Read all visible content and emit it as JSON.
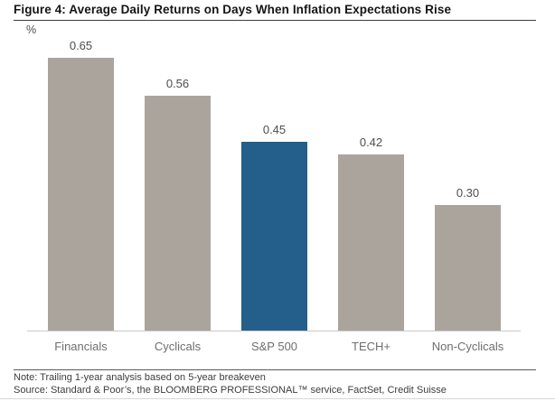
{
  "figure": {
    "title": "Figure 4: Average Daily Returns on Days When Inflation Expectations Rise",
    "note": "Note: Trailing 1-year analysis based on 5-year breakeven",
    "source": "Source: Standard & Poor’s, the BLOOMBERG PROFESSIONAL™ service, FactSet, Credit Suisse"
  },
  "chart_data": {
    "type": "bar",
    "title": "Figure 4: Average Daily Returns on Days When Inflation Expectations Rise",
    "categories": [
      "Financials",
      "Cyclicals",
      "S&P 500",
      "TECH+",
      "Non-Cyclicals"
    ],
    "values": [
      0.65,
      0.56,
      0.45,
      0.42,
      0.3
    ],
    "data_labels": [
      "0.65",
      "0.56",
      "0.45",
      "0.42",
      "0.30"
    ],
    "unit_label": "%",
    "xlabel": "",
    "ylabel": "%",
    "ylim": [
      0,
      0.72
    ],
    "grid": false,
    "legend": false,
    "highlight_category": "S&P 500",
    "colors": {
      "bar": "#aba49d",
      "highlight": "#235f8a",
      "axis_line": "#c9c9c9",
      "value_label_text": "#4d4d4d",
      "category_label_text": "#6e6e6e"
    }
  }
}
